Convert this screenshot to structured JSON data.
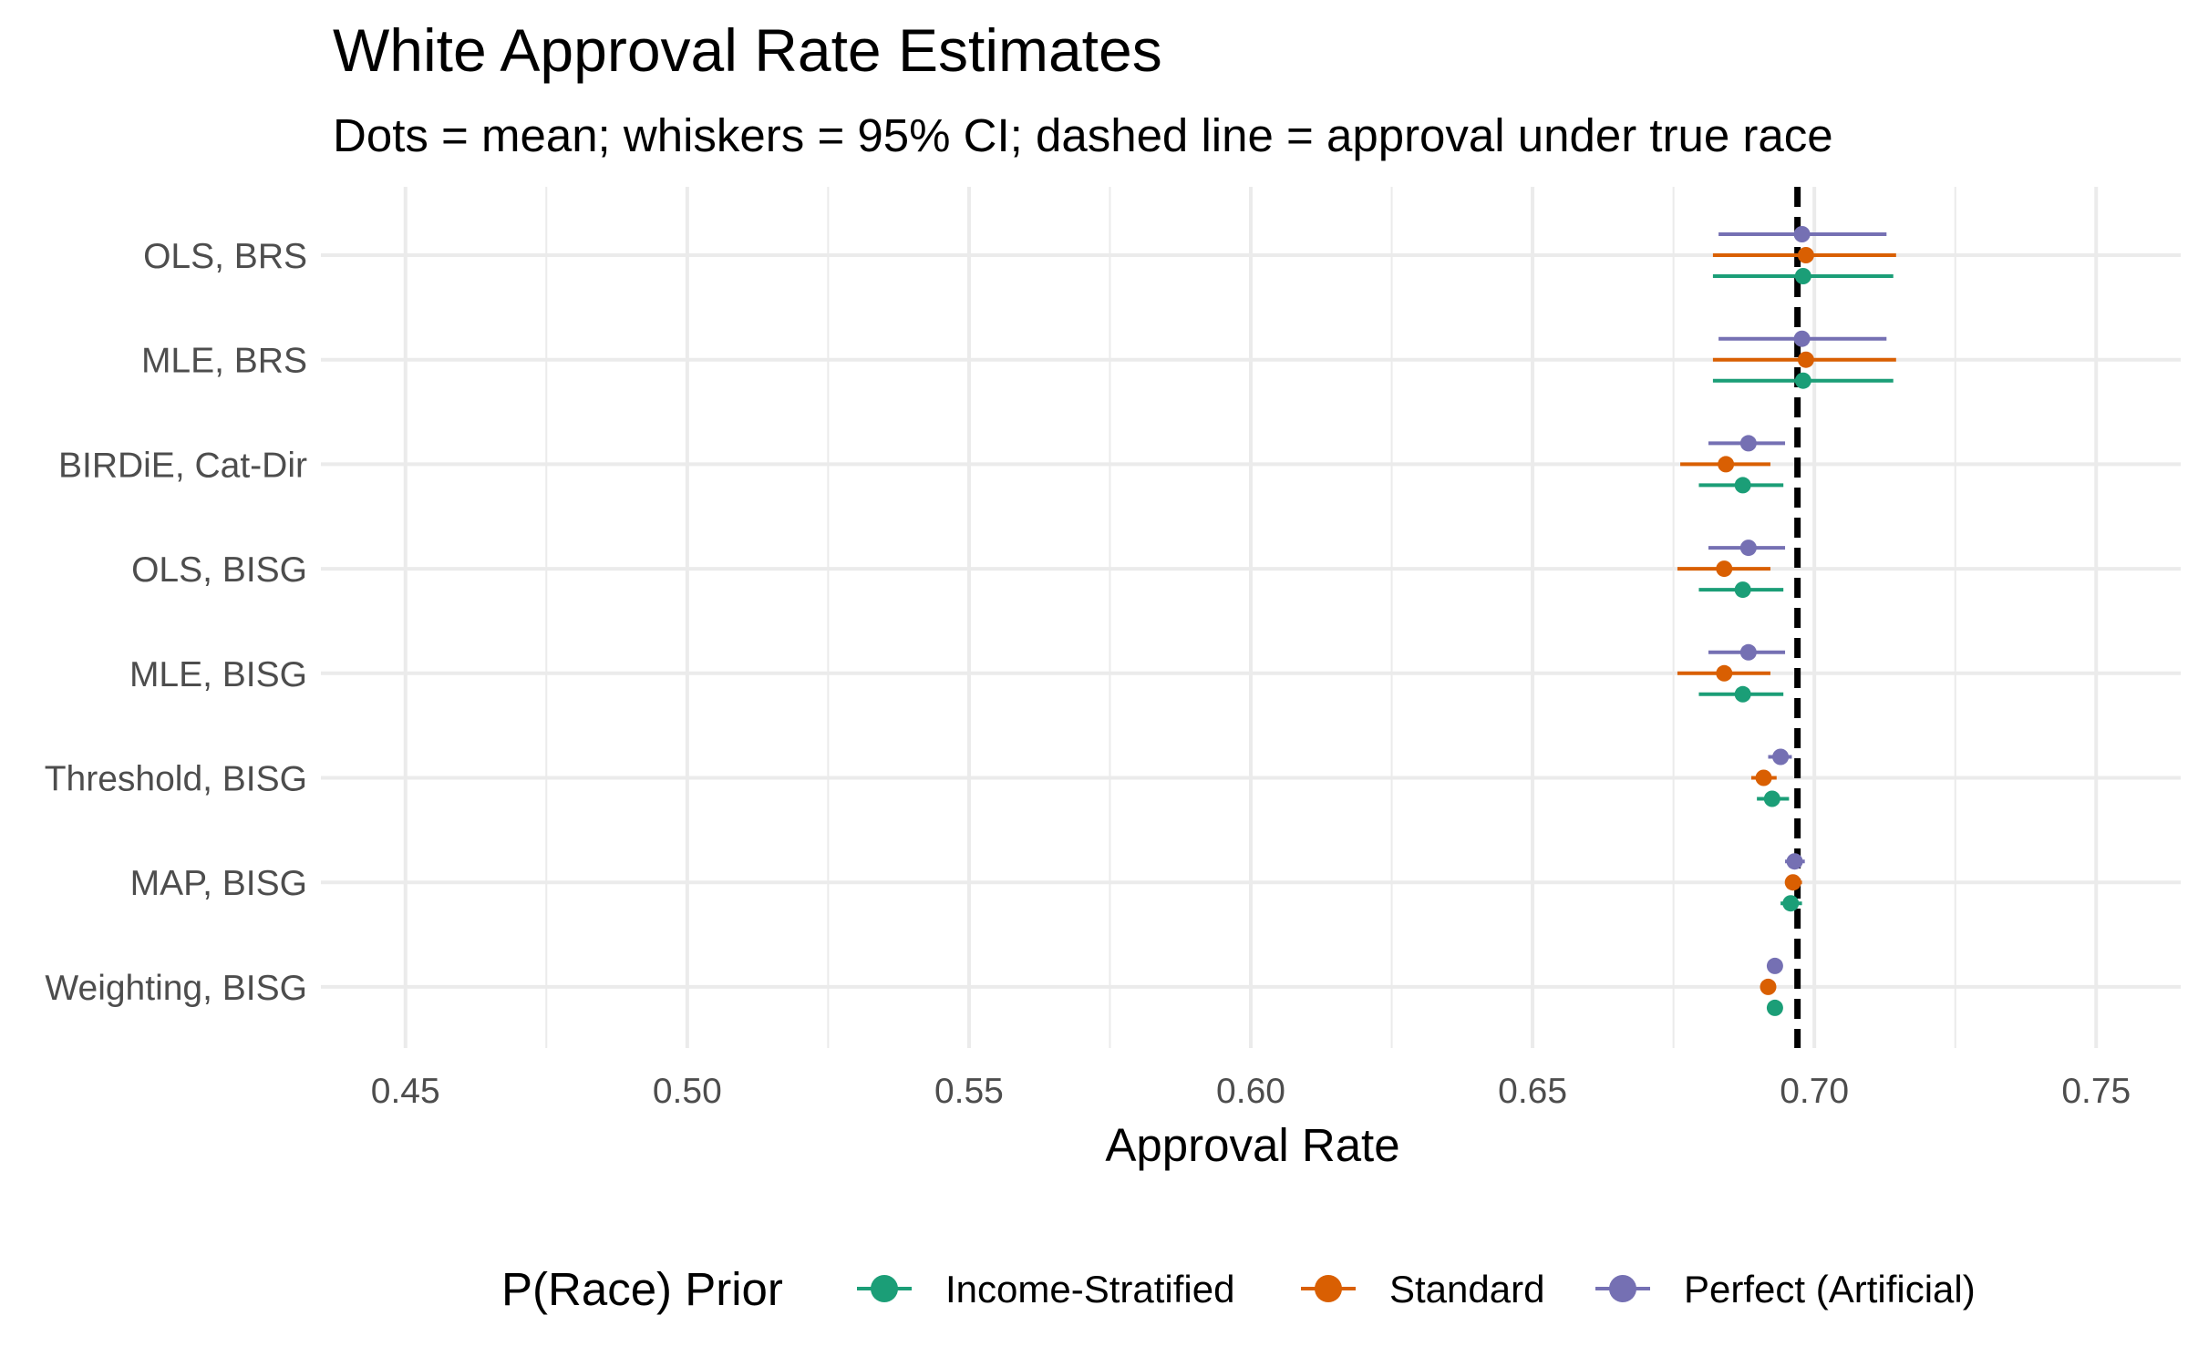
{
  "chart_data": {
    "type": "point-range",
    "title": "White Approval Rate Estimates",
    "subtitle": "Dots = mean; whiskers = 95% CI; dashed line = approval under true race",
    "xlabel": "Approval Rate",
    "ylabel": "",
    "xlim": [
      0.435,
      0.765
    ],
    "x_ticks": [
      "0.45",
      "0.50",
      "0.55",
      "0.60",
      "0.65",
      "0.70",
      "0.75"
    ],
    "x_tick_values": [
      0.45,
      0.5,
      0.55,
      0.6,
      0.65,
      0.7,
      0.75
    ],
    "grid": true,
    "reference_line": {
      "value": 0.697,
      "style": "dashed",
      "label": "approval under true race"
    },
    "categories": [
      "OLS, BRS",
      "MLE, BRS",
      "BIRDiE, Cat-Dir",
      "OLS, BISG",
      "MLE, BISG",
      "Threshold, BISG",
      "MAP, BISG",
      "Weighting, BISG"
    ],
    "legend": {
      "title": "P(Race) Prior",
      "position": "bottom"
    },
    "series": [
      {
        "name": "Income-Stratified",
        "color": "#1b9e77",
        "mean": [
          0.698,
          0.698,
          0.6873,
          0.6873,
          0.6873,
          0.6925,
          0.6958,
          0.693
        ],
        "lower": [
          0.682,
          0.682,
          0.6795,
          0.6795,
          0.6795,
          0.6898,
          0.694,
          0.6918
        ],
        "upper": [
          0.714,
          0.714,
          0.6945,
          0.6945,
          0.6945,
          0.6955,
          0.6978,
          0.6942
        ]
      },
      {
        "name": "Standard",
        "color": "#d95f02",
        "mean": [
          0.6985,
          0.6985,
          0.6843,
          0.684,
          0.684,
          0.691,
          0.6962,
          0.6918
        ],
        "lower": [
          0.682,
          0.682,
          0.6762,
          0.6757,
          0.6757,
          0.6888,
          0.6948,
          0.6908
        ],
        "upper": [
          0.7145,
          0.7145,
          0.6922,
          0.6922,
          0.6922,
          0.6933,
          0.6978,
          0.6928
        ]
      },
      {
        "name": "Perfect (Artificial)",
        "color": "#7570b3",
        "mean": [
          0.6978,
          0.6978,
          0.6883,
          0.6883,
          0.6883,
          0.694,
          0.6965,
          0.693
        ],
        "lower": [
          0.683,
          0.683,
          0.6812,
          0.6812,
          0.6812,
          0.6918,
          0.6948,
          0.6918
        ],
        "upper": [
          0.7128,
          0.7128,
          0.6948,
          0.6948,
          0.6948,
          0.696,
          0.6983,
          0.6942
        ]
      }
    ]
  }
}
